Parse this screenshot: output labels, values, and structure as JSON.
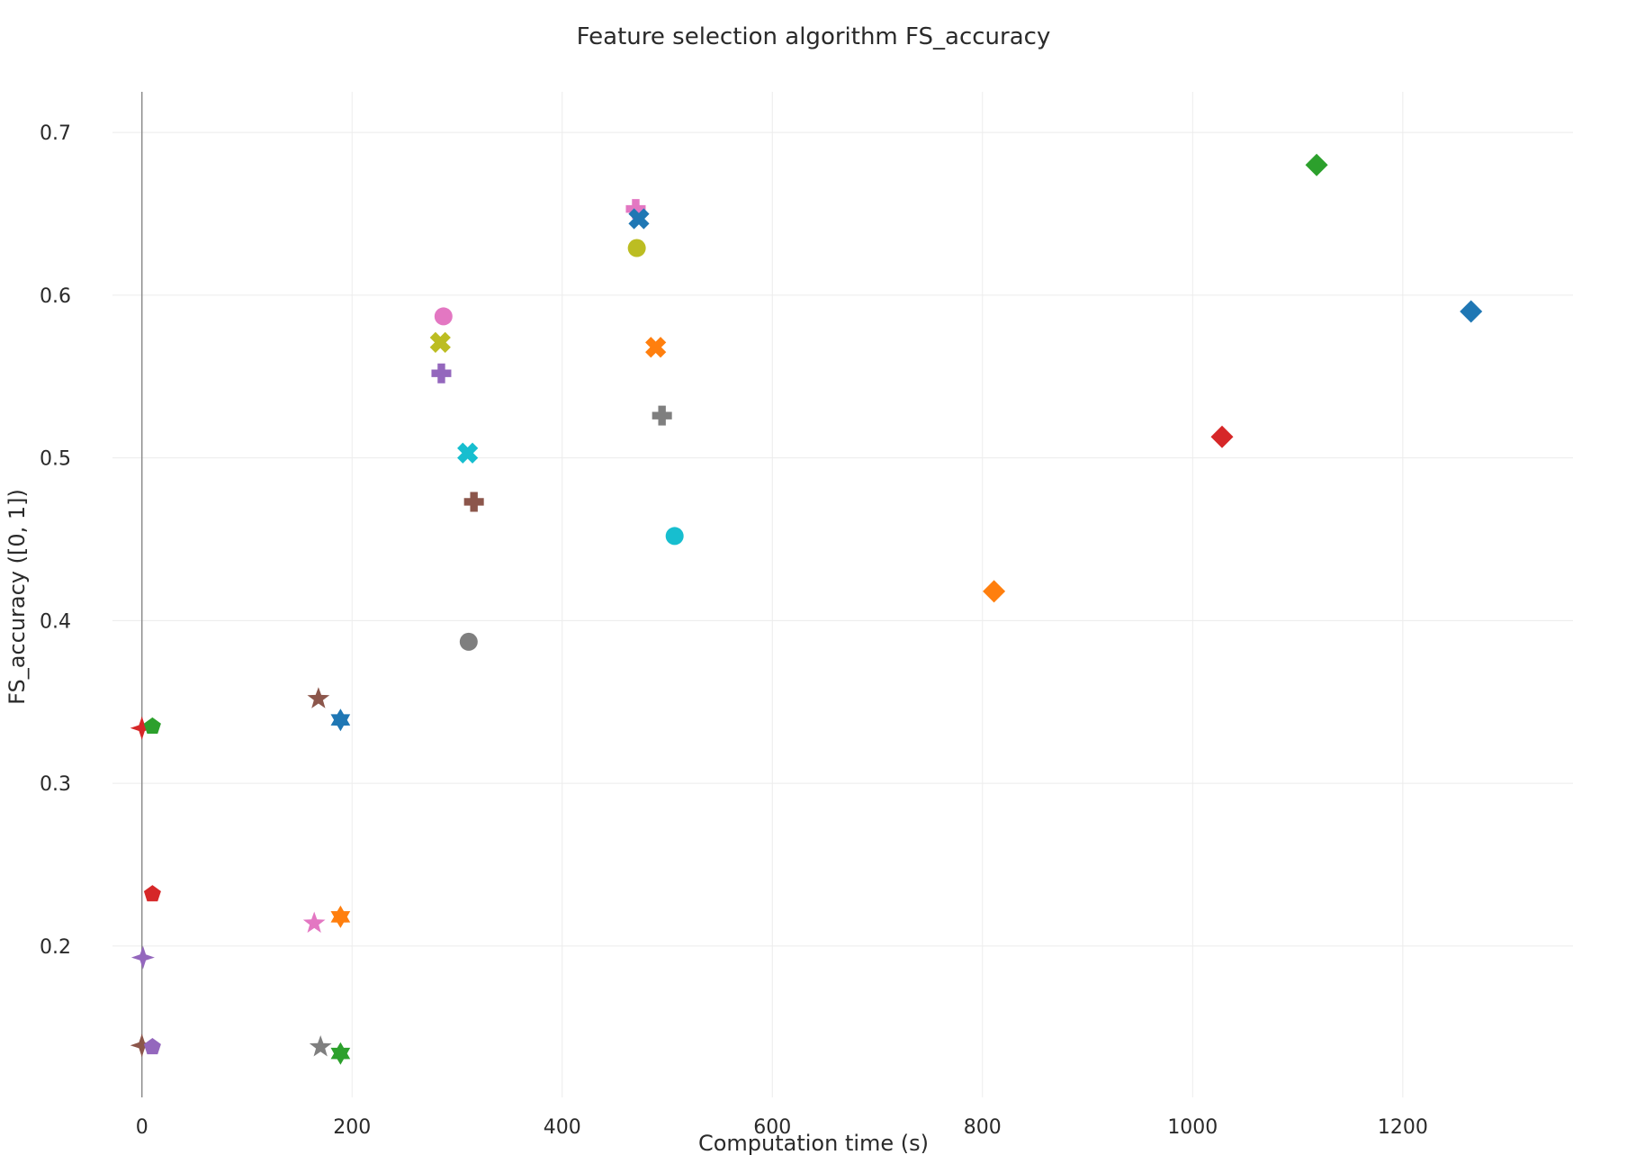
{
  "chart_data": {
    "type": "scatter",
    "title": "Feature selection algorithm FS_accuracy",
    "xlabel": "Computation time (s)",
    "ylabel": "FS_accuracy ([0, 1])",
    "xlim": [
      -28,
      1362
    ],
    "ylim": [
      0.107,
      0.725
    ],
    "xticks": [
      0,
      200,
      400,
      600,
      800,
      1000,
      1200
    ],
    "yticks": [
      0.2,
      0.3,
      0.4,
      0.5,
      0.6,
      0.7
    ],
    "grid": true,
    "legend": "none",
    "colors": {
      "blue": "#1f77b4",
      "orange": "#ff7f0e",
      "green": "#2ca02c",
      "red": "#d62728",
      "purple": "#9467bd",
      "brown": "#8c564b",
      "pink": "#e377c2",
      "gray": "#7f7f7f",
      "olive": "#bcbd22",
      "cyan": "#17becf"
    },
    "points": [
      {
        "x": 1118,
        "y": 0.68,
        "marker": "diamond",
        "color": "green"
      },
      {
        "x": 1265,
        "y": 0.59,
        "marker": "diamond",
        "color": "blue"
      },
      {
        "x": 1028,
        "y": 0.513,
        "marker": "diamond",
        "color": "red"
      },
      {
        "x": 811,
        "y": 0.418,
        "marker": "diamond",
        "color": "orange"
      },
      {
        "x": 470,
        "y": 0.653,
        "marker": "cross",
        "color": "pink"
      },
      {
        "x": 473,
        "y": 0.647,
        "marker": "x",
        "color": "blue"
      },
      {
        "x": 471,
        "y": 0.629,
        "marker": "circle",
        "color": "olive"
      },
      {
        "x": 489,
        "y": 0.568,
        "marker": "x",
        "color": "orange"
      },
      {
        "x": 495,
        "y": 0.526,
        "marker": "cross",
        "color": "gray"
      },
      {
        "x": 507,
        "y": 0.452,
        "marker": "circle",
        "color": "cyan"
      },
      {
        "x": 287,
        "y": 0.587,
        "marker": "circle",
        "color": "pink"
      },
      {
        "x": 284,
        "y": 0.571,
        "marker": "x",
        "color": "olive"
      },
      {
        "x": 285,
        "y": 0.552,
        "marker": "cross",
        "color": "purple"
      },
      {
        "x": 310,
        "y": 0.503,
        "marker": "x",
        "color": "cyan"
      },
      {
        "x": 316,
        "y": 0.473,
        "marker": "cross",
        "color": "brown"
      },
      {
        "x": 311,
        "y": 0.387,
        "marker": "circle",
        "color": "gray"
      },
      {
        "x": 168,
        "y": 0.352,
        "marker": "star",
        "color": "brown"
      },
      {
        "x": 189,
        "y": 0.339,
        "marker": "hexagram",
        "color": "blue"
      },
      {
        "x": 189,
        "y": 0.218,
        "marker": "hexagram",
        "color": "orange"
      },
      {
        "x": 164,
        "y": 0.214,
        "marker": "star",
        "color": "pink"
      },
      {
        "x": 170,
        "y": 0.138,
        "marker": "star",
        "color": "gray"
      },
      {
        "x": 189,
        "y": 0.134,
        "marker": "hexagram",
        "color": "green"
      },
      {
        "x": 0,
        "y": 0.334,
        "marker": "star4",
        "color": "red"
      },
      {
        "x": 10,
        "y": 0.335,
        "marker": "pentagon",
        "color": "green"
      },
      {
        "x": 10,
        "y": 0.232,
        "marker": "pentagon",
        "color": "red"
      },
      {
        "x": 1,
        "y": 0.193,
        "marker": "star4",
        "color": "purple"
      },
      {
        "x": 0,
        "y": 0.139,
        "marker": "star4",
        "color": "brown"
      },
      {
        "x": 10,
        "y": 0.138,
        "marker": "pentagon",
        "color": "purple"
      }
    ]
  }
}
